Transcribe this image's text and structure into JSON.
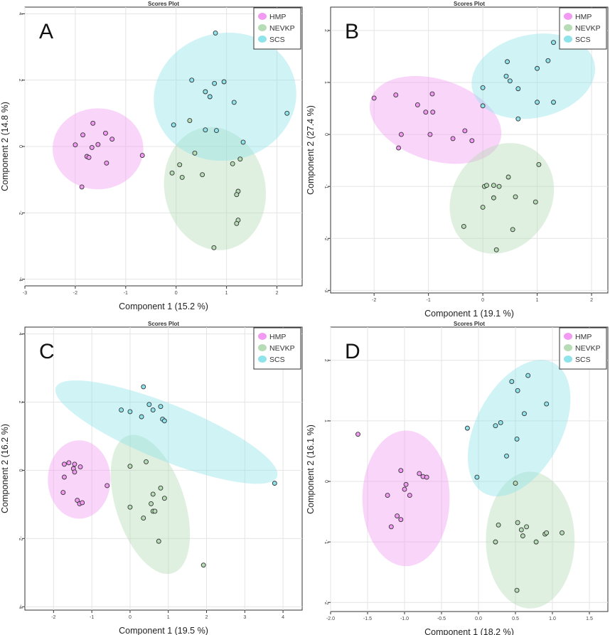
{
  "figure_title": "Scores Plot",
  "groups": [
    {
      "name": "HMP",
      "color": "#f29af2"
    },
    {
      "name": "NEVKP",
      "color": "#b6dcb6"
    },
    {
      "name": "SCS",
      "color": "#8fe3ea"
    }
  ],
  "chart_data": [
    {
      "type": "scatter",
      "panel_label": "A",
      "title": "Scores Plot",
      "xlabel": "Component 1 (15.2 %)",
      "ylabel": "Component 2 (14.8 %)",
      "xlim": [
        -3,
        2.5
      ],
      "ylim": [
        -4.2,
        4.2
      ],
      "xticks": [
        -3,
        -2,
        -1,
        0,
        1,
        2
      ],
      "yticks": [
        -4,
        -2,
        0,
        2,
        4
      ],
      "xtick_labels": [
        "-3",
        "-2",
        "-1",
        "0",
        "1",
        "2"
      ],
      "ytick_labels": [
        "-4",
        "-2",
        "0",
        "2",
        "4"
      ],
      "legend": "top-right",
      "series": [
        {
          "name": "HMP",
          "points": [
            [
              -2.0,
              0.05
            ],
            [
              -1.87,
              -1.22
            ],
            [
              -1.85,
              0.35
            ],
            [
              -1.77,
              -0.3
            ],
            [
              -1.73,
              -0.33
            ],
            [
              -1.65,
              0.7
            ],
            [
              -1.67,
              -0.03
            ],
            [
              -1.55,
              0.06
            ],
            [
              -1.4,
              0.4
            ],
            [
              -1.38,
              -0.5
            ],
            [
              -1.27,
              0.22
            ],
            [
              -0.67,
              -0.27
            ]
          ],
          "ellipse": {
            "cx": -1.55,
            "cy": -0.07,
            "rx": 0.9,
            "ry": 1.22,
            "angle": 0
          }
        },
        {
          "name": "NEVKP",
          "points": [
            [
              -0.08,
              -0.8
            ],
            [
              0.07,
              -0.55
            ],
            [
              0.12,
              -0.93
            ],
            [
              0.27,
              0.78
            ],
            [
              0.37,
              -0.2
            ],
            [
              0.52,
              -0.85
            ],
            [
              0.75,
              -3.05
            ],
            [
              1.12,
              -0.52
            ],
            [
              1.23,
              -1.35
            ],
            [
              1.2,
              -1.45
            ],
            [
              1.23,
              -2.22
            ],
            [
              1.2,
              -2.32
            ],
            [
              1.27,
              -0.38
            ]
          ],
          "ellipse": {
            "cx": 0.77,
            "cy": -1.27,
            "rx": 1.0,
            "ry": 1.87,
            "angle": -12
          }
        },
        {
          "name": "SCS",
          "points": [
            [
              -0.05,
              0.65
            ],
            [
              0.31,
              2.0
            ],
            [
              0.58,
              1.65
            ],
            [
              0.58,
              0.5
            ],
            [
              0.67,
              1.5
            ],
            [
              0.76,
              1.9
            ],
            [
              0.78,
              3.42
            ],
            [
              0.8,
              0.48
            ],
            [
              0.95,
              1.95
            ],
            [
              1.15,
              1.33
            ],
            [
              1.33,
              0.13
            ],
            [
              2.2,
              1.0
            ]
          ],
          "ellipse": {
            "cx": 0.97,
            "cy": 1.5,
            "rx": 1.42,
            "ry": 1.92,
            "angle": -12
          }
        }
      ]
    },
    {
      "type": "scatter",
      "panel_label": "B",
      "title": "Scores Plot",
      "xlabel": "Component 1 (19.1 %)",
      "ylabel": "Component 2 (27.4 %)",
      "xlim": [
        -2.8,
        2.3
      ],
      "ylim": [
        -3.05,
        2.45
      ],
      "xticks": [
        -2,
        -1,
        0,
        1,
        2
      ],
      "yticks": [
        -3,
        -2,
        -1,
        0,
        1,
        2
      ],
      "xtick_labels": [
        "-2",
        "-1",
        "0",
        "1",
        "2"
      ],
      "ytick_labels": [
        "-3",
        "-2",
        "-1",
        "0",
        "1",
        "2"
      ],
      "legend": "top-right",
      "series": [
        {
          "name": "HMP",
          "points": [
            [
              -2.0,
              0.7
            ],
            [
              -1.6,
              0.76
            ],
            [
              -1.55,
              -0.26
            ],
            [
              -1.5,
              0.0
            ],
            [
              -1.2,
              0.57
            ],
            [
              -1.05,
              0.43
            ],
            [
              -0.97,
              0.0
            ],
            [
              -0.92,
              0.43
            ],
            [
              -0.93,
              0.78
            ],
            [
              -0.55,
              -0.08
            ],
            [
              -0.33,
              0.07
            ],
            [
              -0.2,
              -0.12
            ]
          ],
          "ellipse": {
            "cx": -0.87,
            "cy": 0.28,
            "rx": 1.25,
            "ry": 0.78,
            "angle": 18
          }
        },
        {
          "name": "NEVKP",
          "points": [
            [
              -0.35,
              -1.77
            ],
            [
              0.0,
              -1.4
            ],
            [
              0.03,
              -1.0
            ],
            [
              0.07,
              -0.98
            ],
            [
              0.2,
              -1.22
            ],
            [
              0.2,
              -0.98
            ],
            [
              0.25,
              -2.22
            ],
            [
              0.3,
              -1.0
            ],
            [
              0.47,
              -0.82
            ],
            [
              0.55,
              -1.83
            ],
            [
              0.6,
              -1.2
            ],
            [
              0.97,
              -1.3
            ],
            [
              1.03,
              -0.58
            ]
          ],
          "ellipse": {
            "cx": 0.35,
            "cy": -1.23,
            "rx": 0.9,
            "ry": 1.12,
            "angle": 35
          }
        },
        {
          "name": "SCS",
          "points": [
            [
              0.0,
              0.9
            ],
            [
              0.0,
              0.55
            ],
            [
              0.43,
              1.12
            ],
            [
              0.45,
              1.4
            ],
            [
              0.5,
              1.03
            ],
            [
              0.65,
              0.88
            ],
            [
              0.65,
              0.3
            ],
            [
              1.0,
              1.27
            ],
            [
              1.0,
              0.62
            ],
            [
              1.2,
              1.42
            ],
            [
              1.3,
              1.77
            ],
            [
              1.3,
              0.62
            ]
          ],
          "ellipse": {
            "cx": 0.93,
            "cy": 1.12,
            "rx": 1.15,
            "ry": 0.8,
            "angle": -12
          }
        }
      ]
    },
    {
      "type": "scatter",
      "panel_label": "C",
      "title": "Scores Plot",
      "xlabel": "Component 1 (19.5 %)",
      "ylabel": "Component 2 (16.2 %)",
      "xlim": [
        -2.75,
        4.5
      ],
      "ylim": [
        -4.1,
        4.2
      ],
      "xticks": [
        -2,
        -1,
        0,
        1,
        2,
        3,
        4
      ],
      "yticks": [
        -4,
        -2,
        0,
        2,
        4
      ],
      "xtick_labels": [
        "-2",
        "-1",
        "0",
        "1",
        "2",
        "3",
        "4"
      ],
      "ytick_labels": [
        "-4",
        "-2",
        "0",
        "2",
        "4"
      ],
      "legend": "top-right",
      "series": [
        {
          "name": "HMP",
          "points": [
            [
              -1.75,
              -0.65
            ],
            [
              -1.72,
              -0.2
            ],
            [
              -1.72,
              0.18
            ],
            [
              -1.6,
              0.22
            ],
            [
              -1.48,
              0.05
            ],
            [
              -1.45,
              0.18
            ],
            [
              -1.45,
              -0.05
            ],
            [
              -1.38,
              -0.88
            ],
            [
              -1.32,
              -0.98
            ],
            [
              -1.3,
              0.1
            ],
            [
              -1.25,
              -0.95
            ],
            [
              -0.6,
              -0.45
            ]
          ],
          "ellipse": {
            "cx": -1.33,
            "cy": -0.27,
            "rx": 0.82,
            "ry": 1.15,
            "angle": 0
          }
        },
        {
          "name": "NEVKP",
          "points": [
            [
              0.0,
              0.12
            ],
            [
              0.0,
              -1.08
            ],
            [
              0.35,
              -1.4
            ],
            [
              0.42,
              0.25
            ],
            [
              0.55,
              -0.98
            ],
            [
              0.6,
              -1.2
            ],
            [
              0.6,
              -0.7
            ],
            [
              0.65,
              -1.2
            ],
            [
              0.75,
              -2.08
            ],
            [
              0.8,
              -0.52
            ],
            [
              0.9,
              -0.82
            ],
            [
              1.92,
              -2.78
            ]
          ],
          "ellipse": {
            "cx": 0.53,
            "cy": -1.0,
            "rx": 0.9,
            "ry": 2.12,
            "angle": -18
          }
        },
        {
          "name": "SCS",
          "points": [
            [
              -0.23,
              1.77
            ],
            [
              0.0,
              1.72
            ],
            [
              0.3,
              1.57
            ],
            [
              0.35,
              2.45
            ],
            [
              0.5,
              1.93
            ],
            [
              0.6,
              1.77
            ],
            [
              0.8,
              1.87
            ],
            [
              0.85,
              1.5
            ],
            [
              0.9,
              1.45
            ],
            [
              3.78,
              -0.38
            ]
          ],
          "ellipse": {
            "cx": 0.95,
            "cy": 1.12,
            "rx": 3.12,
            "ry": 0.82,
            "angle": 22
          }
        }
      ]
    },
    {
      "type": "scatter",
      "panel_label": "D",
      "title": "Scores Plot",
      "xlabel": "Component 1 (18.2 %)",
      "ylabel": "Component 2 (16.1 %)",
      "xlim": [
        -2.0,
        1.75
      ],
      "ylim": [
        -2.15,
        2.55
      ],
      "xticks": [
        -2.0,
        -1.5,
        -1.0,
        -0.5,
        0.0,
        0.5,
        1.0,
        1.5
      ],
      "yticks": [
        -2,
        -1,
        0,
        1,
        2
      ],
      "xtick_labels": [
        "-2.0",
        "-1.5",
        "-1.0",
        "-0.5",
        "0.0",
        "0.5",
        "1.0",
        "1.5"
      ],
      "ytick_labels": [
        "-2",
        "-1",
        "0",
        "1",
        "2"
      ],
      "legend": "top-right",
      "series": [
        {
          "name": "HMP",
          "points": [
            [
              -1.63,
              0.78
            ],
            [
              -1.23,
              -0.23
            ],
            [
              -1.18,
              -0.75
            ],
            [
              -1.1,
              -0.57
            ],
            [
              -1.05,
              0.18
            ],
            [
              -1.05,
              -0.63
            ],
            [
              -1.0,
              -0.13
            ],
            [
              -0.98,
              -0.05
            ],
            [
              -0.93,
              -0.23
            ],
            [
              -0.8,
              0.13
            ],
            [
              -0.75,
              0.08
            ],
            [
              -0.7,
              0.07
            ]
          ],
          "ellipse": {
            "cx": -0.98,
            "cy": -0.28,
            "rx": 0.59,
            "ry": 1.12,
            "angle": 0
          }
        },
        {
          "name": "NEVKP",
          "points": [
            [
              0.23,
              -1.0
            ],
            [
              0.27,
              -0.72
            ],
            [
              0.5,
              -0.03
            ],
            [
              0.52,
              -1.8
            ],
            [
              0.53,
              -0.68
            ],
            [
              0.58,
              -0.8
            ],
            [
              0.6,
              -0.9
            ],
            [
              0.65,
              -0.75
            ],
            [
              0.78,
              -1.0
            ],
            [
              0.9,
              -0.87
            ],
            [
              0.92,
              -0.85
            ],
            [
              1.13,
              -0.85
            ]
          ],
          "ellipse": {
            "cx": 0.7,
            "cy": -0.97,
            "rx": 0.6,
            "ry": 1.13,
            "angle": 0
          }
        },
        {
          "name": "SCS",
          "points": [
            [
              -0.02,
              0.07
            ],
            [
              -0.15,
              0.88
            ],
            [
              0.23,
              0.92
            ],
            [
              0.3,
              0.97
            ],
            [
              0.38,
              0.42
            ],
            [
              0.45,
              1.65
            ],
            [
              0.52,
              0.7
            ],
            [
              0.53,
              1.5
            ],
            [
              0.62,
              1.12
            ],
            [
              0.67,
              1.75
            ],
            [
              0.92,
              1.28
            ]
          ],
          "ellipse": {
            "cx": 0.55,
            "cy": 0.88,
            "rx": 0.58,
            "ry": 1.22,
            "angle": 28
          }
        }
      ]
    }
  ]
}
